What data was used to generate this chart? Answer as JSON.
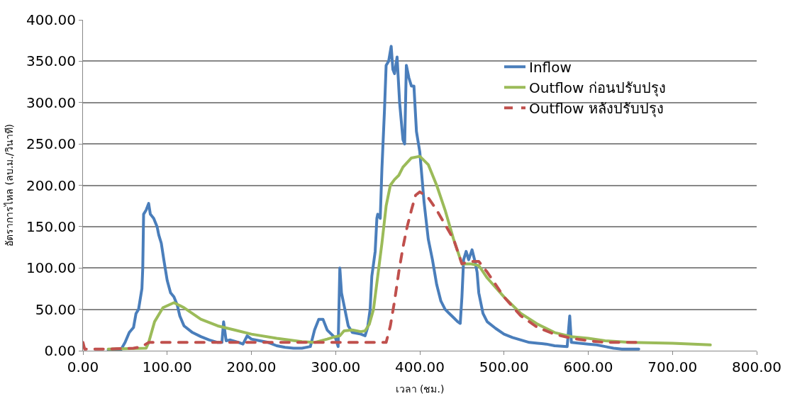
{
  "chart_data": {
    "type": "line",
    "xlabel": "เวลา (ชม.)",
    "ylabel": "อัตราการไหล (ลบ.ม./วินาที)",
    "xlim": [
      0,
      800
    ],
    "ylim": [
      0,
      400
    ],
    "xticks": [
      {
        "value": 0,
        "label": "0.00"
      },
      {
        "value": 100,
        "label": "100.00"
      },
      {
        "value": 200,
        "label": "200.00"
      },
      {
        "value": 300,
        "label": "300.00"
      },
      {
        "value": 400,
        "label": "400.00"
      },
      {
        "value": 500,
        "label": "500.00"
      },
      {
        "value": 600,
        "label": "600.00"
      },
      {
        "value": 700,
        "label": "700.00"
      },
      {
        "value": 800,
        "label": "800.00"
      }
    ],
    "yticks": [
      {
        "value": 0,
        "label": "0.00"
      },
      {
        "value": 50,
        "label": "50.00"
      },
      {
        "value": 100,
        "label": "100.00"
      },
      {
        "value": 150,
        "label": "150.00"
      },
      {
        "value": 200,
        "label": "200.00"
      },
      {
        "value": 250,
        "label": "250.00"
      },
      {
        "value": 300,
        "label": "300.00"
      },
      {
        "value": 350,
        "label": "350.00"
      },
      {
        "value": 400,
        "label": "400.00"
      }
    ],
    "grid": "y",
    "legend": "top right",
    "marker": "none",
    "series": [
      {
        "name": "Inflow",
        "color": "#4a7ebb",
        "line_style": "solid",
        "x": [
          30,
          40,
          45,
          50,
          55,
          60,
          63,
          66,
          70,
          71,
          72,
          75,
          78,
          80,
          84,
          88,
          90,
          93,
          96,
          100,
          104,
          108,
          112,
          115,
          120,
          130,
          140,
          150,
          160,
          165,
          167,
          170,
          175,
          185,
          190,
          195,
          200,
          210,
          220,
          230,
          240,
          250,
          260,
          270,
          275,
          280,
          285,
          290,
          300,
          303,
          305,
          307,
          310,
          315,
          320,
          330,
          335,
          338,
          341,
          343,
          345,
          347,
          349,
          350,
          353,
          355,
          358,
          360,
          363,
          366,
          368,
          370,
          373,
          376,
          380,
          382,
          384,
          387,
          390,
          393,
          396,
          400,
          405,
          410,
          415,
          420,
          425,
          430,
          435,
          440,
          445,
          448,
          450,
          452,
          455,
          458,
          462,
          465,
          468,
          470,
          475,
          480,
          490,
          500,
          510,
          520,
          530,
          540,
          550,
          560,
          575,
          578,
          580,
          590,
          600,
          610,
          620,
          630,
          640,
          660
        ],
        "values": [
          1,
          2,
          1,
          10,
          22,
          28,
          45,
          50,
          75,
          100,
          165,
          170,
          178,
          165,
          160,
          150,
          140,
          130,
          110,
          85,
          70,
          65,
          55,
          42,
          30,
          22,
          17,
          13,
          10,
          10,
          35,
          12,
          13,
          10,
          8,
          18,
          14,
          12,
          10,
          6,
          4,
          3,
          3,
          5,
          25,
          38,
          38,
          25,
          15,
          5,
          100,
          70,
          55,
          30,
          22,
          20,
          18,
          28,
          50,
          90,
          105,
          120,
          160,
          165,
          160,
          220,
          290,
          345,
          350,
          368,
          340,
          335,
          355,
          300,
          255,
          250,
          345,
          330,
          320,
          320,
          265,
          240,
          180,
          135,
          110,
          80,
          60,
          50,
          45,
          40,
          35,
          33,
          65,
          110,
          120,
          110,
          122,
          110,
          95,
          70,
          45,
          35,
          27,
          20,
          16,
          13,
          10,
          9,
          8,
          6,
          5,
          42,
          10,
          9,
          8,
          7,
          5,
          3,
          2,
          2
        ]
      },
      {
        "name": "Outflow ก่อนปรับปรุง",
        "color": "#9bbb59",
        "line_style": "solid",
        "x": [
          30,
          75,
          78,
          85,
          95,
          108,
          120,
          140,
          160,
          180,
          200,
          230,
          260,
          275,
          290,
          300,
          305,
          310,
          320,
          330,
          335,
          340,
          345,
          350,
          355,
          360,
          365,
          370,
          375,
          380,
          390,
          400,
          410,
          420,
          430,
          440,
          450,
          460,
          470,
          480,
          500,
          520,
          540,
          560,
          580,
          600,
          620,
          650,
          700,
          745
        ],
        "values": [
          2,
          3,
          10,
          35,
          52,
          58,
          52,
          38,
          30,
          25,
          20,
          15,
          11,
          10,
          14,
          17,
          18,
          24,
          25,
          23,
          24,
          32,
          50,
          90,
          130,
          175,
          200,
          207,
          212,
          222,
          233,
          235,
          225,
          200,
          170,
          135,
          105,
          105,
          103,
          88,
          65,
          45,
          32,
          22,
          17,
          15,
          12,
          10,
          9,
          7
        ]
      },
      {
        "name": "Outflow หลังปรับปรุง",
        "color": "#c0504d",
        "line_style": "dashed",
        "x": [
          0,
          2,
          30,
          60,
          70,
          78,
          300,
          360,
          365,
          370,
          375,
          380,
          385,
          390,
          395,
          400,
          410,
          420,
          440,
          450,
          460,
          470,
          480,
          500,
          520,
          540,
          560,
          580,
          600,
          620,
          660
        ],
        "values": [
          10,
          2,
          2,
          3,
          5,
          10,
          10,
          10,
          30,
          60,
          95,
          125,
          150,
          170,
          188,
          192,
          185,
          170,
          135,
          105,
          108,
          108,
          95,
          65,
          42,
          28,
          20,
          15,
          12,
          10,
          10
        ]
      }
    ]
  }
}
